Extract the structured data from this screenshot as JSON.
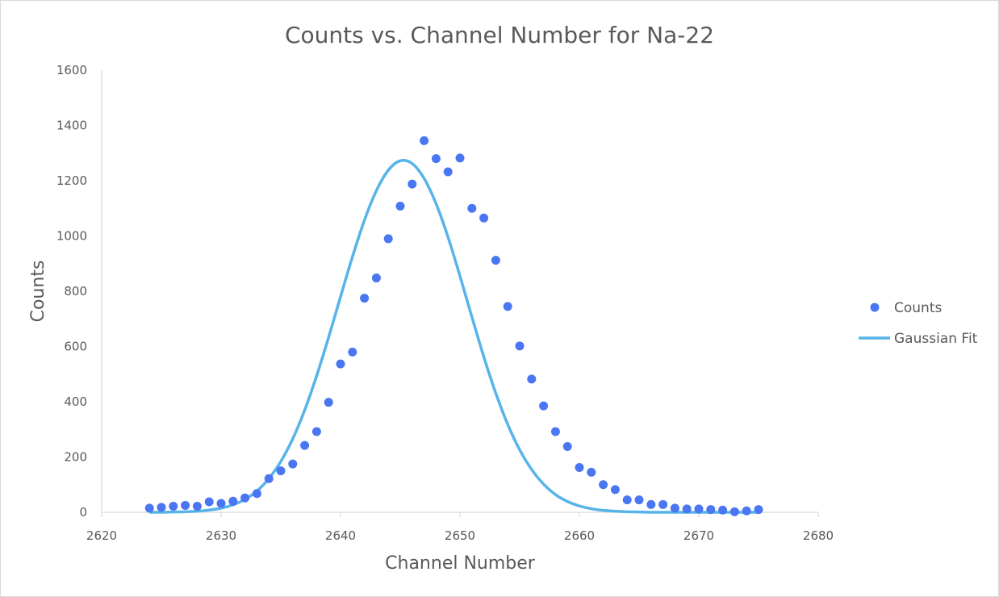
{
  "chart_data": {
    "type": "scatter",
    "title": "Counts vs. Channel Number for Na-22",
    "xlabel": "Channel Number",
    "ylabel": "Counts",
    "xlim": [
      2620,
      2680
    ],
    "ylim": [
      0,
      1600
    ],
    "xticks": [
      2620,
      2630,
      2640,
      2650,
      2660,
      2670,
      2680
    ],
    "yticks": [
      0,
      200,
      400,
      600,
      800,
      1000,
      1200,
      1400,
      1600
    ],
    "grid": false,
    "legend": "right",
    "series": [
      {
        "name": "Counts",
        "type": "scatter",
        "color": "#4a76f2",
        "x": [
          2624,
          2625,
          2626,
          2627,
          2628,
          2629,
          2630,
          2631,
          2632,
          2633,
          2634,
          2635,
          2636,
          2637,
          2638,
          2639,
          2640,
          2641,
          2642,
          2643,
          2644,
          2645,
          2646,
          2647,
          2648,
          2649,
          2650,
          2651,
          2652,
          2653,
          2654,
          2655,
          2656,
          2657,
          2658,
          2659,
          2660,
          2661,
          2662,
          2663,
          2664,
          2665,
          2666,
          2667,
          2668,
          2669,
          2670,
          2671,
          2672,
          2673,
          2674,
          2675
        ],
        "y": [
          15,
          18,
          22,
          25,
          22,
          38,
          32,
          40,
          52,
          68,
          122,
          150,
          175,
          242,
          292,
          398,
          537,
          580,
          775,
          848,
          990,
          1108,
          1188,
          1345,
          1280,
          1232,
          1282,
          1100,
          1065,
          912,
          745,
          602,
          482,
          385,
          292,
          238,
          162,
          145,
          100,
          82,
          45,
          45,
          28,
          28,
          15,
          12,
          12,
          10,
          8,
          2,
          5,
          10
        ]
      },
      {
        "name": "Gaussian Fit",
        "type": "line",
        "color": "#56b4e9",
        "x": [
          2624,
          2625,
          2626,
          2627,
          2628,
          2629,
          2630,
          2631,
          2632,
          2633,
          2634,
          2635,
          2636,
          2637,
          2638,
          2639,
          2640,
          2641,
          2642,
          2643,
          2644,
          2645,
          2646,
          2647,
          2648,
          2649,
          2650,
          2651,
          2652,
          2653,
          2654,
          2655,
          2656,
          2657,
          2658,
          2659,
          2660,
          2661,
          2662,
          2663,
          2664,
          2665,
          2666,
          2667,
          2668,
          2669,
          2670,
          2671,
          2672,
          2673,
          2674,
          2675
        ],
        "y": [
          0,
          0,
          1,
          2,
          4,
          8,
          15,
          27,
          47,
          77,
          122,
          184,
          266,
          370,
          494,
          633,
          780,
          925,
          1057,
          1164,
          1238,
          1272,
          1262,
          1208,
          1117,
          996,
          855,
          707,
          562,
          431,
          318,
          226,
          155,
          102,
          64,
          39,
          23,
          13,
          7,
          4,
          2,
          1,
          0,
          0,
          0,
          0,
          0,
          0,
          0,
          0,
          0,
          0
        ]
      }
    ]
  }
}
